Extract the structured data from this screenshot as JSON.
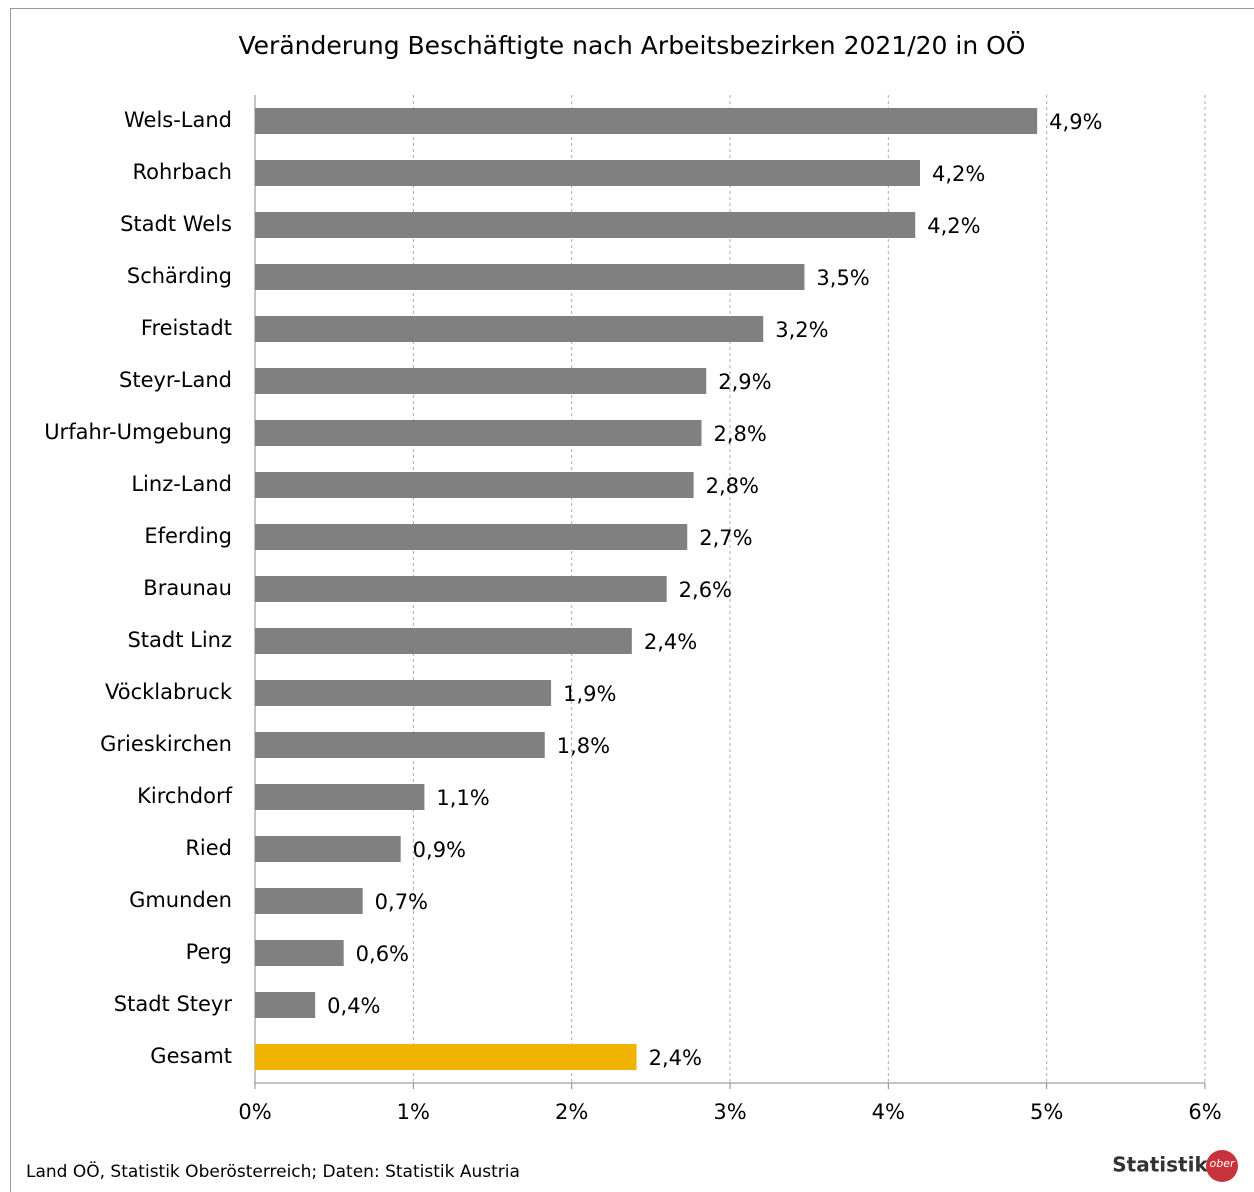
{
  "chart_data": {
    "type": "barh",
    "title": "Veränderung Beschäftigte nach Arbeitsbezirken 2021/20 in OÖ",
    "categories": [
      "Wels-Land",
      "Rohrbach",
      "Stadt Wels",
      "Schärding",
      "Freistadt",
      "Steyr-Land",
      "Urfahr-Umgebung",
      "Linz-Land",
      "Eferding",
      "Braunau",
      "Stadt Linz",
      "Vöcklabruck",
      "Grieskirchen",
      "Kirchdorf",
      "Ried",
      "Gmunden",
      "Perg",
      "Stadt Steyr",
      "Gesamt"
    ],
    "values": [
      4.94,
      4.2,
      4.17,
      3.47,
      3.21,
      2.85,
      2.82,
      2.77,
      2.73,
      2.6,
      2.38,
      1.87,
      1.83,
      1.07,
      0.92,
      0.68,
      0.56,
      0.38,
      2.41
    ],
    "value_labels": [
      "4,9%",
      "4,2%",
      "4,2%",
      "3,5%",
      "3,2%",
      "2,9%",
      "2,8%",
      "2,8%",
      "2,7%",
      "2,6%",
      "2,4%",
      "1,9%",
      "1,8%",
      "1,1%",
      "0,9%",
      "0,7%",
      "0,6%",
      "0,4%",
      "2,4%"
    ],
    "colors": [
      "#808080",
      "#808080",
      "#808080",
      "#808080",
      "#808080",
      "#808080",
      "#808080",
      "#808080",
      "#808080",
      "#808080",
      "#808080",
      "#808080",
      "#808080",
      "#808080",
      "#808080",
      "#808080",
      "#808080",
      "#808080",
      "#f0b400"
    ],
    "xlim": [
      0,
      6
    ],
    "xticks": [
      {
        "value": 0,
        "label": "0%"
      },
      {
        "value": 1,
        "label": "1%"
      },
      {
        "value": 2,
        "label": "2%"
      },
      {
        "value": 3,
        "label": "3%"
      },
      {
        "value": 4,
        "label": "4%"
      },
      {
        "value": 5,
        "label": "5%"
      },
      {
        "value": 6,
        "label": "6%"
      }
    ],
    "grid": true,
    "source": "Land OÖ, Statistik Oberösterreich; Daten: Statistik Austria",
    "logo": "Statistik",
    "logo_badge": "ober"
  }
}
